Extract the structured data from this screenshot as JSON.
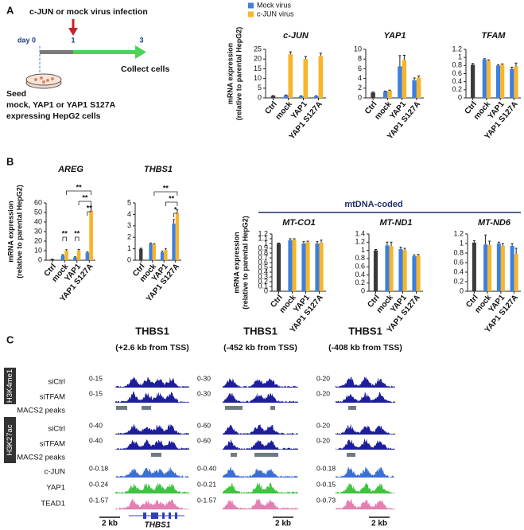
{
  "panel_a": {
    "label": "A",
    "infection": "c-JUN or mock virus infection",
    "days": [
      "day 0",
      "1",
      "3"
    ],
    "collect": "Collect cells",
    "seed": [
      "Seed",
      "mock, YAP1 or YAP1 S127A",
      "expressing HepG2 cells"
    ]
  },
  "panel_b": {
    "label": "B",
    "mtdna": "mtDNA-coded"
  },
  "chart_data": [
    {
      "type": "bar",
      "title": "c-JUN",
      "ylabel": [
        "mRNA expression",
        "(relative to parental HepG2)"
      ],
      "categories": [
        "Ctrl",
        "mock",
        "YAP1",
        "YAP1 S127A"
      ],
      "series": [
        {
          "color": "#3a3a3a",
          "values": [
            1,
            null,
            null,
            null
          ],
          "errors": [
            0.2,
            null,
            null,
            null
          ]
        },
        {
          "name": "Mock virus",
          "color": "#3d7fe0",
          "values": [
            null,
            1.3,
            0.8,
            0.8
          ],
          "errors": [
            null,
            0.2,
            0.2,
            0.2
          ]
        },
        {
          "name": "c-JUN virus",
          "color": "#f7b52a",
          "values": [
            null,
            22.5,
            20,
            21.5
          ],
          "errors": [
            null,
            1.2,
            1.3,
            1.5
          ]
        }
      ],
      "ylim": [
        0,
        25
      ],
      "yticks": [
        0,
        5,
        10,
        15,
        20,
        25
      ]
    },
    {
      "type": "bar",
      "title": "YAP1",
      "categories": [
        "Ctrl",
        "mock",
        "YAP1",
        "YAP1 S127A"
      ],
      "series": [
        {
          "color": "#3a3a3a",
          "values": [
            1.1,
            null,
            null,
            null
          ],
          "errors": [
            0.1,
            null,
            null,
            null
          ]
        },
        {
          "color": "#3d7fe0",
          "values": [
            null,
            1.3,
            6.5,
            3.6
          ],
          "errors": [
            null,
            0.1,
            2.2,
            0.5
          ]
        },
        {
          "color": "#f7b52a",
          "values": [
            null,
            1.5,
            7.8,
            4.2
          ],
          "errors": [
            null,
            0.1,
            1.0,
            0.3
          ]
        }
      ],
      "ylim": [
        0,
        10
      ],
      "yticks": [
        0,
        2,
        4,
        6,
        8,
        10
      ]
    },
    {
      "type": "bar",
      "title": "TFAM",
      "categories": [
        "Ctrl",
        "mock",
        "YAP1",
        "YAP1 S127A"
      ],
      "series": [
        {
          "color": "#3a3a3a",
          "values": [
            0.82,
            null,
            null,
            null
          ],
          "errors": [
            0.03,
            null,
            null,
            null
          ]
        },
        {
          "color": "#3d7fe0",
          "values": [
            null,
            0.95,
            0.8,
            0.72
          ],
          "errors": [
            null,
            0.02,
            0.02,
            0.04
          ]
        },
        {
          "color": "#f7b52a",
          "values": [
            null,
            0.92,
            0.82,
            0.78
          ],
          "errors": [
            null,
            0.02,
            0.02,
            0.08
          ]
        }
      ],
      "ylim": [
        0,
        1.2
      ],
      "yticks": [
        0,
        0.2,
        0.4,
        0.6,
        0.8,
        1,
        1.2
      ]
    },
    {
      "type": "bar",
      "title": "AREG",
      "ylabel": [
        "mRNA expression",
        "(relative to parental HepG2)"
      ],
      "categories": [
        "Ctrl",
        "mock",
        "YAP1",
        "YAP1 S127A"
      ],
      "series": [
        {
          "color": "#3a3a3a",
          "values": [
            1,
            null,
            null,
            null
          ],
          "errors": [
            0.2,
            null,
            null,
            null
          ]
        },
        {
          "color": "#3d7fe0",
          "values": [
            null,
            5,
            3,
            8
          ],
          "errors": [
            null,
            0.8,
            0.5,
            0.8
          ]
        },
        {
          "color": "#f7b52a",
          "values": [
            null,
            10,
            10,
            52
          ],
          "errors": [
            null,
            1.0,
            1.2,
            4.5
          ]
        }
      ],
      "ylim": [
        0,
        60
      ],
      "yticks": [
        0,
        10,
        20,
        30,
        40,
        50,
        60
      ],
      "annotations": [
        "**",
        "**",
        "**",
        "**",
        "**"
      ]
    },
    {
      "type": "bar",
      "title": "THBS1",
      "categories": [
        "Ctrl",
        "mock",
        "YAP1",
        "YAP1 S127A"
      ],
      "series": [
        {
          "color": "#3a3a3a",
          "values": [
            1,
            null,
            null,
            null
          ],
          "errors": [
            0.05,
            null,
            null,
            null
          ]
        },
        {
          "color": "#3d7fe0",
          "values": [
            null,
            1.45,
            0.7,
            3.2
          ],
          "errors": [
            null,
            0.05,
            0.1,
            0.35
          ]
        },
        {
          "color": "#f7b52a",
          "values": [
            null,
            1.4,
            0.9,
            4.1
          ],
          "errors": [
            null,
            0.05,
            0.1,
            0.3
          ]
        }
      ],
      "ylim": [
        0,
        5
      ],
      "yticks": [
        0,
        1,
        2,
        3,
        4,
        5
      ],
      "annotations": [
        "*",
        "**",
        "**"
      ]
    },
    {
      "type": "bar",
      "title": "MT-CO1",
      "ylabel": [
        "mRNA expression",
        "(relative to parental HepG2)"
      ],
      "categories": [
        "Ctrl",
        "mock",
        "YAP1",
        "YAP1 S127A"
      ],
      "series": [
        {
          "color": "#3a3a3a",
          "values": [
            1,
            null,
            null,
            null
          ],
          "errors": [
            0.01,
            null,
            null,
            null
          ]
        },
        {
          "color": "#3d7fe0",
          "values": [
            null,
            1.07,
            1.0,
            1.0
          ],
          "errors": [
            null,
            0.03,
            0.04,
            0.04
          ]
        },
        {
          "color": "#f7b52a",
          "values": [
            null,
            1.08,
            1.03,
            1.02
          ],
          "errors": [
            null,
            0.02,
            0.02,
            0.05
          ]
        }
      ],
      "ylim": [
        0,
        1.2
      ],
      "yticks": [
        0,
        0.1,
        0.2,
        0.3,
        0.4,
        0.5,
        0.6,
        0.7,
        0.8,
        0.9,
        1,
        1.1,
        1.2
      ]
    },
    {
      "type": "bar",
      "title": "MT-ND1",
      "categories": [
        "Ctrl",
        "mock",
        "YAP1",
        "YAP1 S127A"
      ],
      "series": [
        {
          "color": "#3a3a3a",
          "values": [
            1,
            null,
            null,
            null
          ],
          "errors": [
            0.02,
            null,
            null,
            null
          ]
        },
        {
          "color": "#3d7fe0",
          "values": [
            null,
            1.12,
            1.03,
            0.86
          ],
          "errors": [
            null,
            0.08,
            0.05,
            0.03
          ]
        },
        {
          "color": "#f7b52a",
          "values": [
            null,
            1.1,
            1.0,
            0.87
          ],
          "errors": [
            null,
            0.1,
            0.05,
            0.03
          ]
        }
      ],
      "ylim": [
        0,
        1.4
      ],
      "yticks": [
        0,
        0.2,
        0.4,
        0.6,
        0.8,
        1,
        1.2,
        1.4
      ]
    },
    {
      "type": "bar",
      "title": "MT-ND6",
      "categories": [
        "Ctrl",
        "mock",
        "YAP1",
        "YAP1 S127A"
      ],
      "series": [
        {
          "color": "#3a3a3a",
          "values": [
            1.02,
            null,
            null,
            null
          ],
          "errors": [
            0.04,
            null,
            null,
            null
          ]
        },
        {
          "color": "#3d7fe0",
          "values": [
            null,
            0.98,
            1.0,
            0.95
          ],
          "errors": [
            null,
            0.2,
            0.03,
            0.05
          ]
        },
        {
          "color": "#f7b52a",
          "values": [
            null,
            0.97,
            0.95,
            0.78
          ],
          "errors": [
            null,
            0.08,
            0.05,
            0.12
          ]
        }
      ],
      "ylim": [
        0,
        1.2
      ],
      "yticks": [
        0,
        0.2,
        0.4,
        0.6,
        0.8,
        1,
        1.2
      ]
    }
  ],
  "panel_c": {
    "label": "C",
    "marks": [
      "H3K4me1",
      "H3K27ac"
    ],
    "row_labels": [
      "siCtrl",
      "siTFAM",
      "MACS2 peaks",
      "siCtrl",
      "siTFAM",
      "MACS2 peaks",
      "c-JUN",
      "YAP1",
      "TEAD1"
    ],
    "gene": "THBS1",
    "regions": [
      {
        "title": "THBS1",
        "subtitle": "(+2.6 kb from TSS)",
        "ranges": [
          "0-15",
          "0-15",
          "0-40",
          "0-40",
          "0-0.18",
          "0-0.24",
          "0-1.57"
        ],
        "scale": "2 kb"
      },
      {
        "title": "THBS1",
        "subtitle": "(-452 kb from TSS)",
        "ranges": [
          "0-30",
          "0-30",
          "0-60",
          "0-60",
          "0-0.40",
          "0-0.21",
          "0-1.57"
        ],
        "scale": "2 kb"
      },
      {
        "title": "THBS1",
        "subtitle": "(-408 kb from TSS)",
        "ranges": [
          "0-20",
          "0-20",
          "0-20",
          "0-20",
          "0-0.18",
          "0-0.15",
          "0-0.73"
        ],
        "scale": "2 kb"
      }
    ]
  }
}
